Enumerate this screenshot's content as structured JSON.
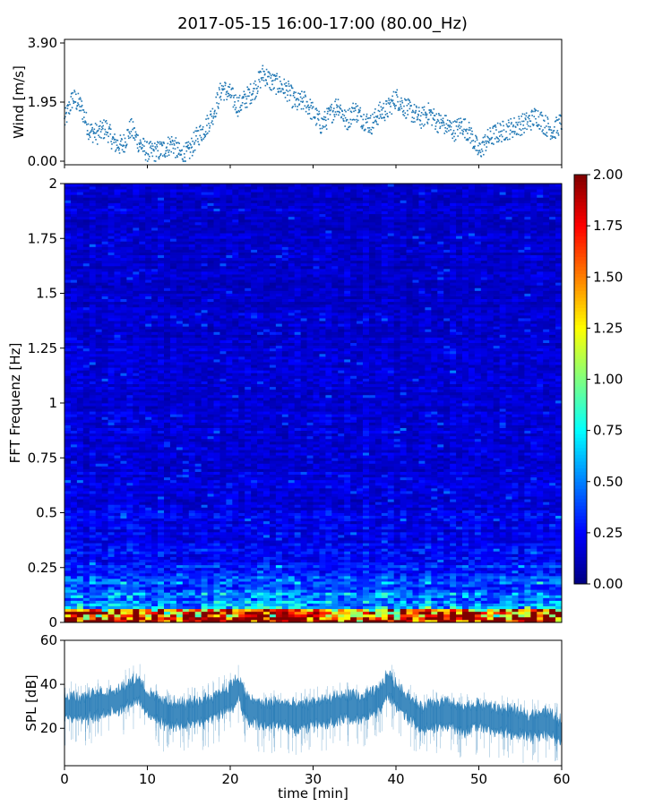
{
  "title": "2017-05-15 16:00-17:00 (80.00_Hz)",
  "chart_data": [
    {
      "type": "scatter",
      "panel": "wind",
      "ylabel": "Wind [m/s]",
      "xlim": [
        0,
        60
      ],
      "ylim": [
        0,
        3.9
      ],
      "yticks": [
        "0.00",
        "1.95",
        "3.90"
      ],
      "color": "#1f77b4",
      "x": [
        0,
        1,
        2,
        3,
        4,
        5,
        6,
        7,
        8,
        9,
        10,
        11,
        12,
        13,
        14,
        15,
        16,
        17,
        18,
        19,
        20,
        21,
        22,
        23,
        24,
        25,
        26,
        27,
        28,
        29,
        30,
        31,
        32,
        33,
        34,
        35,
        36,
        37,
        38,
        39,
        40,
        41,
        42,
        43,
        44,
        45,
        46,
        47,
        48,
        49,
        50,
        51,
        52,
        53,
        54,
        55,
        56,
        57,
        58,
        59,
        60
      ],
      "y": [
        1.3,
        2.1,
        1.8,
        1.0,
        0.9,
        1.1,
        0.6,
        0.5,
        1.1,
        0.6,
        0.3,
        0.3,
        0.4,
        0.6,
        0.2,
        0.3,
        0.8,
        1.1,
        1.6,
        2.4,
        2.2,
        1.8,
        2.1,
        2.4,
        2.9,
        2.6,
        2.5,
        2.3,
        1.9,
        2.0,
        1.6,
        1.2,
        1.5,
        1.9,
        1.3,
        1.7,
        1.4,
        1.2,
        1.6,
        1.7,
        2.1,
        1.8,
        1.6,
        1.4,
        1.6,
        1.3,
        1.2,
        1.0,
        1.2,
        0.9,
        0.3,
        0.7,
        0.9,
        1.0,
        1.1,
        1.2,
        1.3,
        1.5,
        1.2,
        1.0,
        1.3
      ]
    },
    {
      "type": "heatmap",
      "panel": "spectrogram",
      "ylabel": "FFT Frequenz [Hz]",
      "xlim": [
        0,
        60
      ],
      "ylim": [
        0,
        2
      ],
      "yticks": [
        "0",
        "0.25",
        "0.5",
        "0.75",
        "1",
        "1.25",
        "1.5",
        "1.75",
        "2"
      ],
      "colormap": "jet",
      "colorbar": {
        "range": [
          0,
          2
        ],
        "ticks": [
          "0.00",
          "0.25",
          "0.50",
          "0.75",
          "1.00",
          "1.25",
          "1.50",
          "1.75",
          "2.00"
        ]
      }
    },
    {
      "type": "area",
      "panel": "spl",
      "ylabel": "SPL [dB]",
      "xlabel": "time [min]",
      "xlim": [
        0,
        60
      ],
      "ylim": [
        3,
        60
      ],
      "yticks": [
        "20",
        "40",
        "60"
      ],
      "xticks": [
        "0",
        "10",
        "20",
        "30",
        "40",
        "50",
        "60"
      ],
      "color": "#1f77b4",
      "x": [
        0,
        2,
        4,
        6,
        8,
        9,
        10,
        12,
        14,
        16,
        18,
        20,
        21,
        22,
        24,
        26,
        28,
        30,
        32,
        34,
        36,
        38,
        39,
        40,
        42,
        43,
        44,
        46,
        48,
        50,
        52,
        54,
        56,
        58,
        60
      ],
      "y": [
        30,
        29,
        31,
        32,
        36,
        38,
        31,
        27,
        26,
        27,
        30,
        34,
        38,
        29,
        26,
        27,
        25,
        27,
        28,
        30,
        29,
        33,
        40,
        35,
        28,
        24,
        26,
        27,
        24,
        26,
        24,
        23,
        21,
        23,
        18
      ]
    }
  ]
}
